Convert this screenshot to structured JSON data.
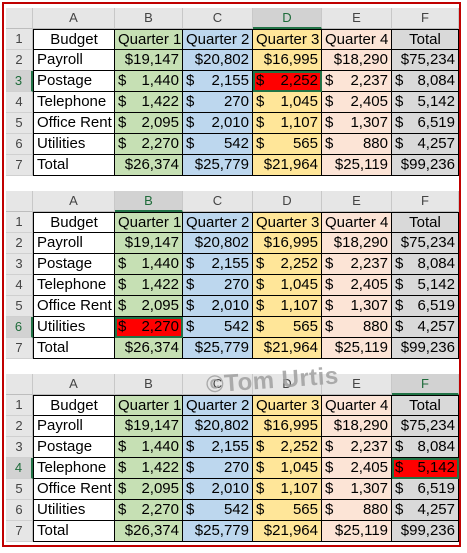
{
  "columns": [
    "A",
    "B",
    "C",
    "D",
    "E",
    "F"
  ],
  "header_row": [
    "Budget",
    "Quarter 1",
    "Quarter 2",
    "Quarter 3",
    "Quarter 4",
    "Total"
  ],
  "rows": [
    {
      "label": "Payroll",
      "values": [
        "$19,147",
        "$20,802",
        "$16,995",
        "$18,290",
        "$75,234"
      ]
    },
    {
      "label": "Postage",
      "values": [
        "$ 1,440",
        "$ 2,155",
        "$ 2,252",
        "$ 2,237",
        "$ 8,084"
      ]
    },
    {
      "label": "Telephone",
      "values": [
        "$ 1,422",
        "$ 270",
        "$ 1,045",
        "$ 2,405",
        "$ 5,142"
      ]
    },
    {
      "label": "Office Rent",
      "values": [
        "$ 2,095",
        "$ 2,010",
        "$ 1,107",
        "$ 1,307",
        "$ 6,519"
      ]
    },
    {
      "label": "Utilities",
      "values": [
        "$ 2,270",
        "$ 542",
        "$ 565",
        "$ 880",
        "$ 4,257"
      ]
    },
    {
      "label": "Total",
      "values": [
        "$26,374",
        "$25,779",
        "$21,964",
        "$25,119",
        "$99,236"
      ]
    }
  ],
  "highlights": [
    {
      "block": 1,
      "selected_col": "D",
      "selected_row": 3,
      "cell": "D3"
    },
    {
      "block": 2,
      "selected_col": "B",
      "selected_row": 6,
      "cell": "B6"
    },
    {
      "block": 3,
      "selected_col": "F",
      "selected_row": 4,
      "cell": "F4"
    }
  ],
  "watermark": "©Tom Urtis",
  "colors": {
    "q1": "#c6e0b4",
    "q2": "#bdd7ee",
    "q3": "#ffe699",
    "q4": "#fce4d6",
    "total": "#d9d9d9",
    "highlight": "#ff0000",
    "frame": "#c00000"
  }
}
